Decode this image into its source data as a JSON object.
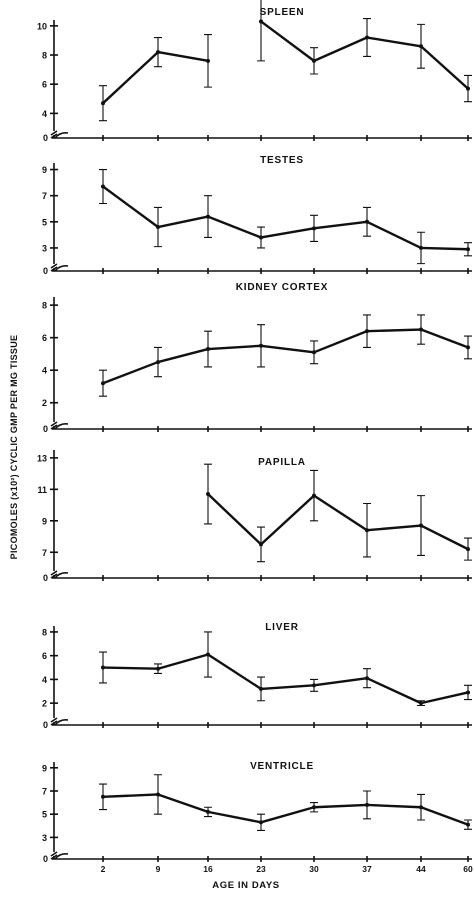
{
  "chart_data": {
    "type": "line",
    "xlabel": "AGE IN DAYS",
    "ylabel": "PICOMOLES (x10²) CYCLIC GMP PER MG TISSUE",
    "x_ticks": [
      2,
      9,
      16,
      23,
      30,
      37,
      44,
      60
    ],
    "panels": [
      {
        "title": "SPLEEN",
        "yticks": [
          4,
          6,
          8,
          10
        ],
        "ylim": [
          3,
          10.4
        ],
        "points": [
          {
            "x": 2,
            "y": 4.7,
            "err": 1.2
          },
          {
            "x": 9,
            "y": 8.2,
            "err": 1.0
          },
          {
            "x": 16,
            "y": 7.6,
            "err": 1.8
          },
          {
            "x": 23,
            "y": 10.3,
            "err": 2.7
          },
          {
            "x": 30,
            "y": 7.6,
            "err": 0.9
          },
          {
            "x": 37,
            "y": 9.2,
            "err": 1.3
          },
          {
            "x": 44,
            "y": 8.6,
            "err": 1.5
          },
          {
            "x": 60,
            "y": 5.7,
            "err": 0.9
          }
        ],
        "gaps": [
          3
        ]
      },
      {
        "title": "TESTES",
        "yticks": [
          3,
          5,
          7,
          9
        ],
        "ylim": [
          2,
          9.5
        ],
        "points": [
          {
            "x": 2,
            "y": 7.7,
            "err": 1.3
          },
          {
            "x": 9,
            "y": 4.6,
            "err": 1.5
          },
          {
            "x": 16,
            "y": 5.4,
            "err": 1.6
          },
          {
            "x": 23,
            "y": 3.8,
            "err": 0.8
          },
          {
            "x": 30,
            "y": 4.5,
            "err": 1.0
          },
          {
            "x": 37,
            "y": 5.0,
            "err": 1.1
          },
          {
            "x": 44,
            "y": 3.0,
            "err": 1.2
          },
          {
            "x": 60,
            "y": 2.9,
            "err": 0.5
          }
        ],
        "gaps": []
      },
      {
        "title": "KIDNEY  CORTEX",
        "yticks": [
          2,
          4,
          6,
          8
        ],
        "ylim": [
          1,
          8.5
        ],
        "points": [
          {
            "x": 2,
            "y": 3.2,
            "err": 0.8
          },
          {
            "x": 9,
            "y": 4.5,
            "err": 0.9
          },
          {
            "x": 16,
            "y": 5.3,
            "err": 1.1
          },
          {
            "x": 23,
            "y": 5.5,
            "err": 1.3
          },
          {
            "x": 30,
            "y": 5.1,
            "err": 0.7
          },
          {
            "x": 37,
            "y": 6.4,
            "err": 1.0
          },
          {
            "x": 44,
            "y": 6.5,
            "err": 0.9
          },
          {
            "x": 60,
            "y": 5.4,
            "err": 0.7
          }
        ],
        "gaps": []
      },
      {
        "title": "PAPILLA",
        "yticks": [
          7,
          9,
          11,
          13
        ],
        "ylim": [
          6,
          13.5
        ],
        "points": [
          {
            "x": 16,
            "y": 10.7,
            "err": 1.9
          },
          {
            "x": 23,
            "y": 7.5,
            "err": 1.1
          },
          {
            "x": 30,
            "y": 10.6,
            "err": 1.6
          },
          {
            "x": 37,
            "y": 8.4,
            "err": 1.7
          },
          {
            "x": 44,
            "y": 8.7,
            "err": 1.9
          },
          {
            "x": 60,
            "y": 7.2,
            "err": 0.7
          }
        ],
        "gaps": []
      },
      {
        "title": "LIVER",
        "yticks": [
          2,
          4,
          6,
          8
        ],
        "ylim": [
          1,
          8.5
        ],
        "points": [
          {
            "x": 2,
            "y": 5.0,
            "err": 1.3
          },
          {
            "x": 9,
            "y": 4.9,
            "err": 0.4
          },
          {
            "x": 16,
            "y": 6.1,
            "err": 1.9
          },
          {
            "x": 23,
            "y": 3.2,
            "err": 1.0
          },
          {
            "x": 30,
            "y": 3.5,
            "err": 0.5
          },
          {
            "x": 37,
            "y": 4.1,
            "err": 0.8
          },
          {
            "x": 44,
            "y": 2.0,
            "err": 0.2
          },
          {
            "x": 60,
            "y": 2.9,
            "err": 0.6
          }
        ],
        "gaps": []
      },
      {
        "title": "VENTRICLE",
        "yticks": [
          3,
          5,
          7,
          9
        ],
        "ylim": [
          2,
          9.5
        ],
        "points": [
          {
            "x": 2,
            "y": 6.5,
            "err": 1.1
          },
          {
            "x": 9,
            "y": 6.7,
            "err": 1.7
          },
          {
            "x": 16,
            "y": 5.2,
            "err": 0.4
          },
          {
            "x": 23,
            "y": 4.3,
            "err": 0.7
          },
          {
            "x": 30,
            "y": 5.6,
            "err": 0.4
          },
          {
            "x": 37,
            "y": 5.8,
            "err": 1.2
          },
          {
            "x": 44,
            "y": 5.6,
            "err": 1.1
          },
          {
            "x": 60,
            "y": 4.1,
            "err": 0.4
          }
        ],
        "gaps": []
      }
    ]
  }
}
